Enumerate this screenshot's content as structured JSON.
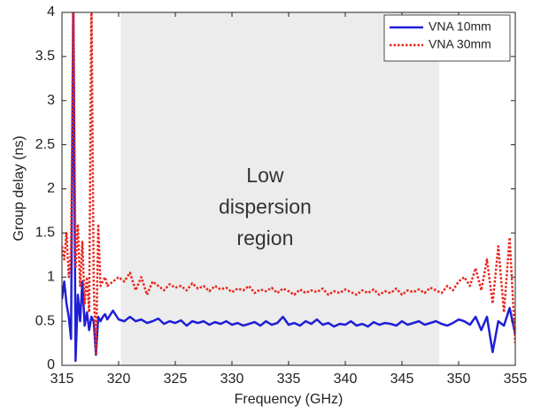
{
  "chart_data": {
    "type": "line",
    "x_label": "Frequency (GHz)",
    "y_label": "Group delay (ns)",
    "annotation": [
      "Low",
      "dispersion",
      "region"
    ],
    "shaded_region": [
      320.2,
      348.3
    ],
    "shaded_color": "#ececec",
    "xlim": [
      315,
      355
    ],
    "xticks": [
      315,
      320,
      325,
      330,
      335,
      340,
      345,
      350,
      355
    ],
    "ylim": [
      0,
      4
    ],
    "yticks": [
      0,
      0.5,
      1,
      1.5,
      2,
      2.5,
      3,
      3.5,
      4
    ],
    "legend": "upper right",
    "x": [
      315,
      315.2,
      315.4,
      315.6,
      315.8,
      316,
      316.2,
      316.4,
      316.6,
      316.8,
      317,
      317.2,
      317.4,
      317.6,
      317.8,
      318,
      318.2,
      318.4,
      318.6,
      318.8,
      319,
      319.5,
      320,
      320.5,
      321,
      321.5,
      322,
      322.5,
      323,
      323.5,
      324,
      324.5,
      325,
      325.5,
      326,
      326.5,
      327,
      327.5,
      328,
      328.5,
      329,
      329.5,
      330,
      330.5,
      331,
      331.5,
      332,
      332.5,
      333,
      333.5,
      334,
      334.5,
      335,
      335.5,
      336,
      336.5,
      337,
      337.5,
      338,
      338.5,
      339,
      339.5,
      340,
      340.5,
      341,
      341.5,
      342,
      342.5,
      343,
      343.5,
      344,
      344.5,
      345,
      345.5,
      346,
      346.5,
      347,
      347.5,
      348,
      348.5,
      349,
      349.5,
      350,
      350.5,
      351,
      351.5,
      352,
      352.5,
      353,
      353.5,
      354,
      354.5,
      355
    ],
    "series": [
      {
        "name": "VNA 10mm",
        "color": "#1f1fd6",
        "dash": "none",
        "values": [
          0.75,
          0.95,
          0.7,
          0.55,
          0.3,
          4.2,
          0.05,
          0.8,
          0.5,
          0.95,
          0.45,
          0.6,
          0.4,
          0.55,
          0.5,
          0.12,
          0.55,
          0.5,
          0.55,
          0.58,
          0.52,
          0.62,
          0.52,
          0.5,
          0.55,
          0.5,
          0.52,
          0.48,
          0.5,
          0.53,
          0.47,
          0.5,
          0.48,
          0.51,
          0.45,
          0.5,
          0.48,
          0.5,
          0.46,
          0.49,
          0.47,
          0.5,
          0.46,
          0.48,
          0.45,
          0.47,
          0.49,
          0.45,
          0.5,
          0.46,
          0.48,
          0.55,
          0.46,
          0.48,
          0.45,
          0.5,
          0.47,
          0.52,
          0.46,
          0.48,
          0.44,
          0.47,
          0.46,
          0.5,
          0.45,
          0.47,
          0.44,
          0.49,
          0.46,
          0.48,
          0.47,
          0.45,
          0.5,
          0.46,
          0.48,
          0.5,
          0.46,
          0.48,
          0.5,
          0.47,
          0.45,
          0.48,
          0.52,
          0.5,
          0.46,
          0.55,
          0.4,
          0.55,
          0.15,
          0.5,
          0.45,
          0.65,
          0.35
        ]
      },
      {
        "name": "VNA 30mm",
        "color": "#e8261c",
        "dash": "2.5,2",
        "values": [
          1.35,
          1.2,
          1.5,
          1.0,
          1.3,
          4.2,
          1.1,
          1.6,
          0.9,
          1.4,
          0.7,
          1.0,
          0.6,
          4.2,
          0.9,
          0.12,
          1.6,
          0.9,
          0.95,
          1.0,
          0.9,
          0.95,
          1.0,
          0.95,
          1.05,
          0.85,
          1.0,
          0.8,
          0.95,
          0.9,
          0.85,
          0.92,
          0.88,
          0.9,
          0.85,
          0.93,
          0.87,
          0.9,
          0.84,
          0.9,
          0.86,
          0.88,
          0.83,
          0.87,
          0.85,
          0.9,
          0.82,
          0.86,
          0.84,
          0.88,
          0.82,
          0.87,
          0.84,
          0.8,
          0.86,
          0.82,
          0.85,
          0.83,
          0.87,
          0.8,
          0.84,
          0.82,
          0.86,
          0.83,
          0.8,
          0.85,
          0.82,
          0.86,
          0.8,
          0.84,
          0.82,
          0.87,
          0.8,
          0.85,
          0.83,
          0.86,
          0.82,
          0.88,
          0.85,
          0.82,
          0.9,
          0.85,
          0.95,
          1.0,
          0.9,
          1.1,
          0.85,
          1.2,
          0.7,
          1.35,
          0.6,
          1.45,
          0.25
        ]
      }
    ]
  }
}
